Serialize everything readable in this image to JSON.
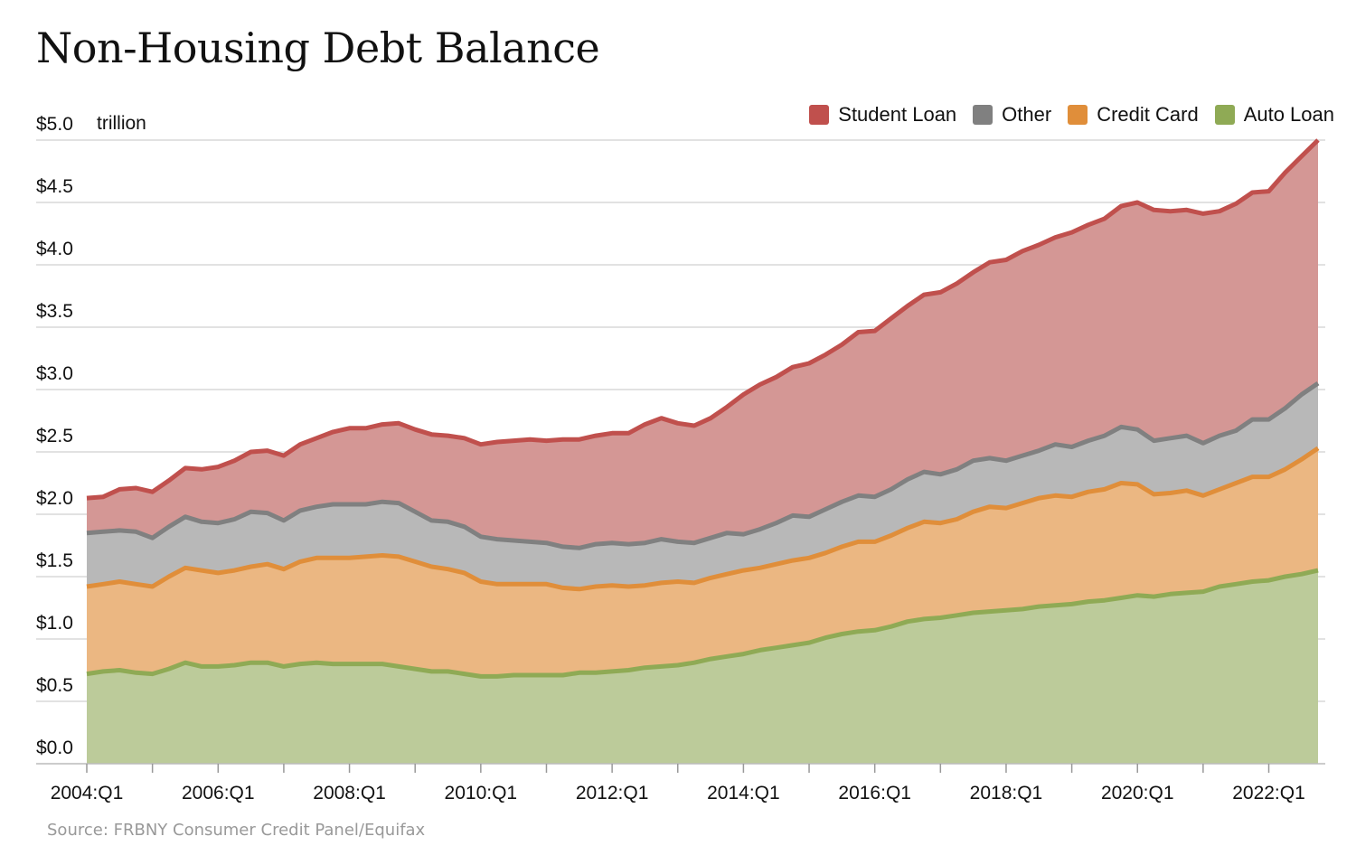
{
  "chart_data": {
    "type": "area",
    "stacked": true,
    "title": "Non-Housing Debt Balance",
    "unit_label": "trillion",
    "source": "Source: FRBNY Consumer Credit Panel/Equifax",
    "ylim": [
      0,
      5
    ],
    "y_ticks": [
      "$0.0",
      "$0.5",
      "$1.0",
      "$1.5",
      "$2.0",
      "$2.5",
      "$3.0",
      "$3.5",
      "$4.0",
      "$4.5",
      "$5.0"
    ],
    "x_ticks": [
      {
        "label": "2004:Q1",
        "index": 0
      },
      {
        "label": "2006:Q1",
        "index": 8
      },
      {
        "label": "2008:Q1",
        "index": 16
      },
      {
        "label": "2010:Q1",
        "index": 24
      },
      {
        "label": "2012:Q1",
        "index": 32
      },
      {
        "label": "2014:Q1",
        "index": 40
      },
      {
        "label": "2016:Q1",
        "index": 48
      },
      {
        "label": "2018:Q1",
        "index": 56
      },
      {
        "label": "2020:Q1",
        "index": 64
      },
      {
        "label": "2022:Q1",
        "index": 72
      }
    ],
    "legend_position": "top-right",
    "legend": [
      {
        "name": "Student Loan",
        "color": "#c0504d"
      },
      {
        "name": "Other",
        "color": "#808080"
      },
      {
        "name": "Credit Card",
        "color": "#e08e3a"
      },
      {
        "name": "Auto Loan",
        "color": "#8faa55"
      }
    ],
    "quarters_from": "2004:Q1",
    "quarters_to": "2022:Q4",
    "series": [
      {
        "name": "Auto Loan",
        "color": "#8faa55",
        "fill": "#bccb9a",
        "values": [
          0.72,
          0.74,
          0.75,
          0.73,
          0.72,
          0.76,
          0.81,
          0.78,
          0.78,
          0.79,
          0.81,
          0.81,
          0.78,
          0.8,
          0.81,
          0.8,
          0.8,
          0.8,
          0.8,
          0.78,
          0.76,
          0.74,
          0.74,
          0.72,
          0.7,
          0.7,
          0.71,
          0.71,
          0.71,
          0.71,
          0.73,
          0.73,
          0.74,
          0.75,
          0.77,
          0.78,
          0.79,
          0.81,
          0.84,
          0.86,
          0.88,
          0.91,
          0.93,
          0.95,
          0.97,
          1.01,
          1.04,
          1.06,
          1.07,
          1.1,
          1.14,
          1.16,
          1.17,
          1.19,
          1.21,
          1.22,
          1.23,
          1.24,
          1.26,
          1.27,
          1.28,
          1.3,
          1.31,
          1.33,
          1.35,
          1.34,
          1.36,
          1.37,
          1.38,
          1.42,
          1.44,
          1.46,
          1.47,
          1.5,
          1.52,
          1.55
        ]
      },
      {
        "name": "Credit Card",
        "color": "#e08e3a",
        "fill": "#ebb782",
        "values": [
          0.7,
          0.7,
          0.71,
          0.71,
          0.7,
          0.74,
          0.76,
          0.77,
          0.75,
          0.76,
          0.77,
          0.79,
          0.78,
          0.82,
          0.84,
          0.85,
          0.85,
          0.86,
          0.87,
          0.88,
          0.86,
          0.84,
          0.82,
          0.81,
          0.76,
          0.74,
          0.73,
          0.73,
          0.73,
          0.7,
          0.67,
          0.69,
          0.69,
          0.67,
          0.66,
          0.67,
          0.67,
          0.64,
          0.65,
          0.66,
          0.67,
          0.66,
          0.67,
          0.68,
          0.68,
          0.68,
          0.7,
          0.72,
          0.71,
          0.73,
          0.75,
          0.78,
          0.76,
          0.77,
          0.81,
          0.84,
          0.82,
          0.85,
          0.87,
          0.88,
          0.86,
          0.88,
          0.89,
          0.92,
          0.89,
          0.82,
          0.81,
          0.82,
          0.77,
          0.78,
          0.81,
          0.84,
          0.83,
          0.86,
          0.92,
          0.98
        ]
      },
      {
        "name": "Other",
        "color": "#808080",
        "fill": "#b8b8b8",
        "values": [
          0.43,
          0.42,
          0.41,
          0.42,
          0.39,
          0.4,
          0.41,
          0.39,
          0.4,
          0.41,
          0.44,
          0.41,
          0.39,
          0.41,
          0.41,
          0.43,
          0.43,
          0.42,
          0.43,
          0.43,
          0.4,
          0.37,
          0.38,
          0.37,
          0.36,
          0.36,
          0.35,
          0.34,
          0.33,
          0.33,
          0.33,
          0.34,
          0.34,
          0.34,
          0.34,
          0.35,
          0.32,
          0.32,
          0.32,
          0.33,
          0.29,
          0.31,
          0.33,
          0.36,
          0.33,
          0.35,
          0.36,
          0.37,
          0.36,
          0.37,
          0.39,
          0.4,
          0.39,
          0.4,
          0.41,
          0.39,
          0.38,
          0.38,
          0.38,
          0.41,
          0.4,
          0.41,
          0.43,
          0.45,
          0.44,
          0.43,
          0.44,
          0.44,
          0.42,
          0.43,
          0.42,
          0.46,
          0.46,
          0.49,
          0.52,
          0.52
        ]
      },
      {
        "name": "Student Loan",
        "color": "#c0504d",
        "fill": "#d49795",
        "values": [
          0.28,
          0.28,
          0.33,
          0.35,
          0.37,
          0.37,
          0.39,
          0.42,
          0.45,
          0.47,
          0.48,
          0.5,
          0.52,
          0.53,
          0.55,
          0.58,
          0.61,
          0.61,
          0.62,
          0.64,
          0.66,
          0.69,
          0.69,
          0.71,
          0.74,
          0.78,
          0.8,
          0.82,
          0.82,
          0.86,
          0.87,
          0.87,
          0.88,
          0.89,
          0.95,
          0.97,
          0.95,
          0.94,
          0.96,
          1.01,
          1.12,
          1.16,
          1.17,
          1.19,
          1.23,
          1.24,
          1.26,
          1.31,
          1.33,
          1.37,
          1.39,
          1.42,
          1.46,
          1.49,
          1.51,
          1.57,
          1.61,
          1.64,
          1.65,
          1.66,
          1.72,
          1.73,
          1.74,
          1.77,
          1.82,
          1.85,
          1.82,
          1.81,
          1.84,
          1.8,
          1.82,
          1.82,
          1.83,
          1.89,
          1.91,
          1.95
        ]
      }
    ]
  }
}
